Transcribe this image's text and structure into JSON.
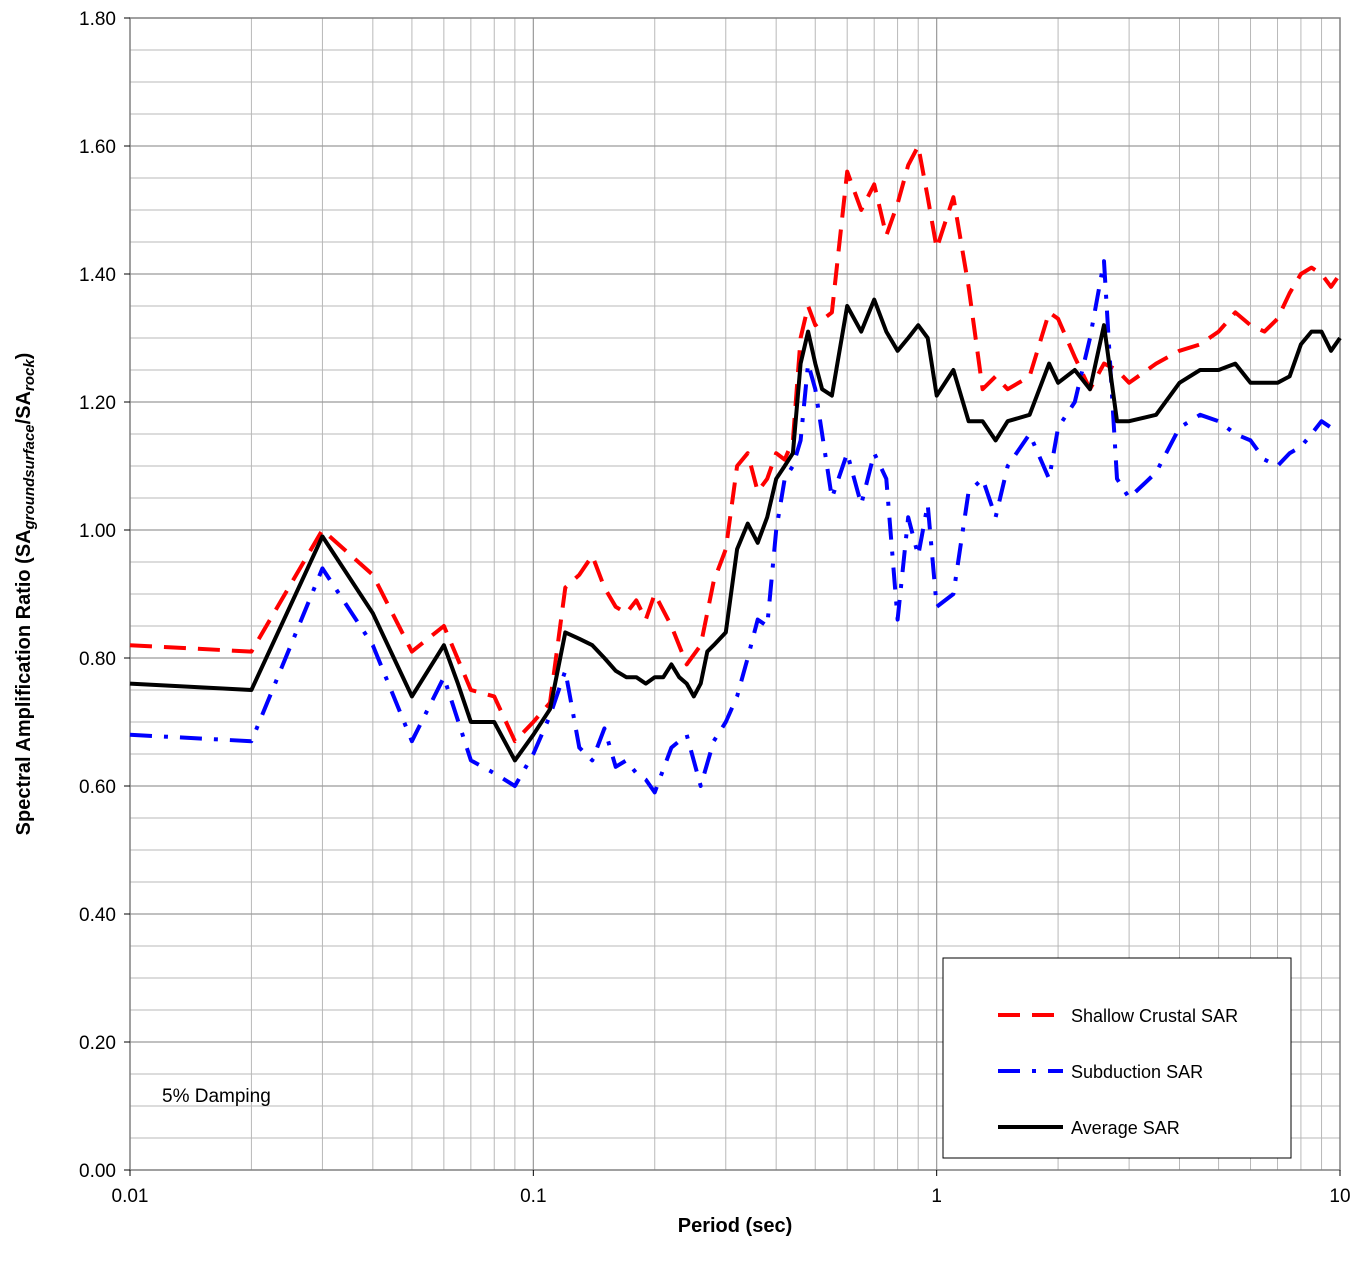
{
  "chart_data": {
    "type": "line",
    "xscale": "log",
    "xlim": [
      0.01,
      10
    ],
    "ylim": [
      0,
      1.8
    ],
    "xlabel": "Period (sec)",
    "ylabel": "Spectral Amplification Ratio (SA",
    "ylabel_sub1": "groundsurface",
    "ylabel_mid": "/SA",
    "ylabel_sub2": "rock",
    "ylabel_end": ")",
    "annotation": "5% Damping",
    "legend_position": "bottom-right",
    "grid": true,
    "x_ticks": [
      0.01,
      0.1,
      1,
      10
    ],
    "x_tick_labels": [
      "0.01",
      "0.1",
      "1",
      "10"
    ],
    "y_ticks": [
      0,
      0.2,
      0.4,
      0.6,
      0.8,
      1.0,
      1.2,
      1.4,
      1.6,
      1.8
    ],
    "y_tick_labels": [
      "0.00",
      "0.20",
      "0.40",
      "0.60",
      "0.80",
      "1.00",
      "1.20",
      "1.40",
      "1.60",
      "1.80"
    ],
    "series": [
      {
        "name": "Shallow Crustal SAR",
        "color": "#ff0000",
        "style": "dashed",
        "x": [
          0.01,
          0.02,
          0.03,
          0.04,
          0.05,
          0.06,
          0.07,
          0.08,
          0.09,
          0.1,
          0.11,
          0.12,
          0.13,
          0.14,
          0.15,
          0.16,
          0.17,
          0.18,
          0.19,
          0.2,
          0.22,
          0.24,
          0.26,
          0.28,
          0.3,
          0.32,
          0.34,
          0.36,
          0.38,
          0.4,
          0.42,
          0.44,
          0.46,
          0.48,
          0.5,
          0.55,
          0.6,
          0.65,
          0.7,
          0.75,
          0.8,
          0.85,
          0.9,
          0.95,
          1.0,
          1.1,
          1.2,
          1.3,
          1.4,
          1.5,
          1.7,
          1.9,
          2.0,
          2.2,
          2.4,
          2.6,
          2.8,
          3.0,
          3.5,
          4.0,
          4.5,
          5.0,
          5.5,
          6.0,
          6.5,
          7.0,
          7.5,
          8.0,
          8.5,
          9.0,
          9.5,
          10.0
        ],
        "y": [
          0.82,
          0.81,
          1.0,
          0.93,
          0.81,
          0.85,
          0.75,
          0.74,
          0.67,
          0.7,
          0.73,
          0.91,
          0.93,
          0.96,
          0.91,
          0.88,
          0.87,
          0.89,
          0.86,
          0.9,
          0.85,
          0.79,
          0.82,
          0.92,
          0.97,
          1.1,
          1.12,
          1.06,
          1.08,
          1.12,
          1.11,
          1.14,
          1.3,
          1.35,
          1.32,
          1.34,
          1.56,
          1.5,
          1.54,
          1.46,
          1.51,
          1.57,
          1.6,
          1.52,
          1.44,
          1.52,
          1.38,
          1.22,
          1.24,
          1.22,
          1.24,
          1.34,
          1.33,
          1.27,
          1.22,
          1.26,
          1.25,
          1.23,
          1.26,
          1.28,
          1.29,
          1.31,
          1.34,
          1.32,
          1.31,
          1.33,
          1.37,
          1.4,
          1.41,
          1.4,
          1.38,
          1.4
        ]
      },
      {
        "name": "Subduction SAR",
        "color": "#0000ff",
        "style": "dashdot",
        "x": [
          0.01,
          0.02,
          0.03,
          0.04,
          0.05,
          0.06,
          0.07,
          0.08,
          0.09,
          0.1,
          0.11,
          0.12,
          0.13,
          0.14,
          0.15,
          0.16,
          0.17,
          0.18,
          0.19,
          0.2,
          0.22,
          0.24,
          0.26,
          0.28,
          0.3,
          0.32,
          0.34,
          0.36,
          0.38,
          0.4,
          0.42,
          0.44,
          0.46,
          0.48,
          0.5,
          0.55,
          0.6,
          0.65,
          0.7,
          0.75,
          0.8,
          0.85,
          0.9,
          0.95,
          1.0,
          1.1,
          1.2,
          1.3,
          1.4,
          1.5,
          1.7,
          1.9,
          2.0,
          2.2,
          2.4,
          2.6,
          2.8,
          3.0,
          3.5,
          4.0,
          4.5,
          5.0,
          5.5,
          6.0,
          6.5,
          7.0,
          7.5,
          8.0,
          8.5,
          9.0,
          9.5,
          10.0
        ],
        "y": [
          0.68,
          0.67,
          0.94,
          0.82,
          0.67,
          0.77,
          0.64,
          0.62,
          0.6,
          0.65,
          0.71,
          0.78,
          0.66,
          0.64,
          0.69,
          0.63,
          0.64,
          0.62,
          0.61,
          0.59,
          0.66,
          0.68,
          0.6,
          0.67,
          0.7,
          0.74,
          0.8,
          0.86,
          0.85,
          1.0,
          1.08,
          1.1,
          1.14,
          1.26,
          1.22,
          1.05,
          1.12,
          1.04,
          1.12,
          1.08,
          0.86,
          1.02,
          0.96,
          1.04,
          0.88,
          0.9,
          1.06,
          1.08,
          1.02,
          1.1,
          1.15,
          1.08,
          1.16,
          1.2,
          1.3,
          1.42,
          1.08,
          1.05,
          1.09,
          1.16,
          1.18,
          1.17,
          1.15,
          1.14,
          1.11,
          1.1,
          1.12,
          1.13,
          1.15,
          1.17,
          1.16,
          1.16
        ]
      },
      {
        "name": "Average SAR",
        "color": "#000000",
        "style": "solid",
        "x": [
          0.01,
          0.02,
          0.03,
          0.04,
          0.05,
          0.06,
          0.065,
          0.07,
          0.08,
          0.09,
          0.1,
          0.11,
          0.12,
          0.13,
          0.14,
          0.15,
          0.16,
          0.17,
          0.18,
          0.19,
          0.2,
          0.21,
          0.22,
          0.23,
          0.24,
          0.25,
          0.26,
          0.27,
          0.28,
          0.3,
          0.32,
          0.34,
          0.36,
          0.38,
          0.4,
          0.42,
          0.44,
          0.46,
          0.48,
          0.5,
          0.52,
          0.55,
          0.6,
          0.65,
          0.7,
          0.75,
          0.8,
          0.85,
          0.9,
          0.95,
          1.0,
          1.1,
          1.2,
          1.3,
          1.4,
          1.5,
          1.7,
          1.9,
          2.0,
          2.2,
          2.4,
          2.6,
          2.8,
          3.0,
          3.5,
          4.0,
          4.5,
          5.0,
          5.5,
          6.0,
          6.5,
          7.0,
          7.5,
          8.0,
          8.5,
          9.0,
          9.5,
          10.0
        ],
        "y": [
          0.76,
          0.75,
          0.99,
          0.87,
          0.74,
          0.82,
          0.76,
          0.7,
          0.7,
          0.64,
          0.68,
          0.72,
          0.84,
          0.83,
          0.82,
          0.8,
          0.78,
          0.77,
          0.77,
          0.76,
          0.77,
          0.77,
          0.79,
          0.77,
          0.76,
          0.74,
          0.76,
          0.81,
          0.82,
          0.84,
          0.97,
          1.01,
          0.98,
          1.02,
          1.08,
          1.1,
          1.12,
          1.26,
          1.31,
          1.26,
          1.22,
          1.21,
          1.35,
          1.31,
          1.36,
          1.31,
          1.28,
          1.3,
          1.32,
          1.3,
          1.21,
          1.25,
          1.17,
          1.17,
          1.14,
          1.17,
          1.18,
          1.26,
          1.23,
          1.25,
          1.22,
          1.32,
          1.17,
          1.17,
          1.18,
          1.23,
          1.25,
          1.25,
          1.26,
          1.23,
          1.23,
          1.23,
          1.24,
          1.29,
          1.31,
          1.31,
          1.28,
          1.3
        ]
      }
    ]
  }
}
